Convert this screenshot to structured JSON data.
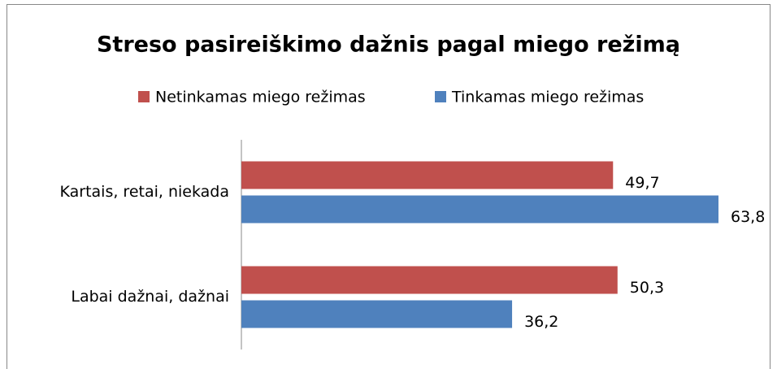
{
  "chart_data": {
    "type": "bar",
    "orientation": "horizontal",
    "title": "Streso pasireiškimo dažnis pagal miego režimą",
    "categories": [
      "Kartais, retai, niekada",
      "Labai dažnai, dažnai"
    ],
    "series": [
      {
        "name": "Netinkamas miego režimas",
        "color": "#c0504d",
        "values": [
          49.7,
          50.3
        ],
        "value_labels": [
          "49,7",
          "50,3"
        ]
      },
      {
        "name": "Tinkamas miego režimas",
        "color": "#4f81bd",
        "values": [
          63.8,
          36.2
        ],
        "value_labels": [
          "63,8",
          "36,2"
        ]
      }
    ],
    "legend": "top"
  }
}
